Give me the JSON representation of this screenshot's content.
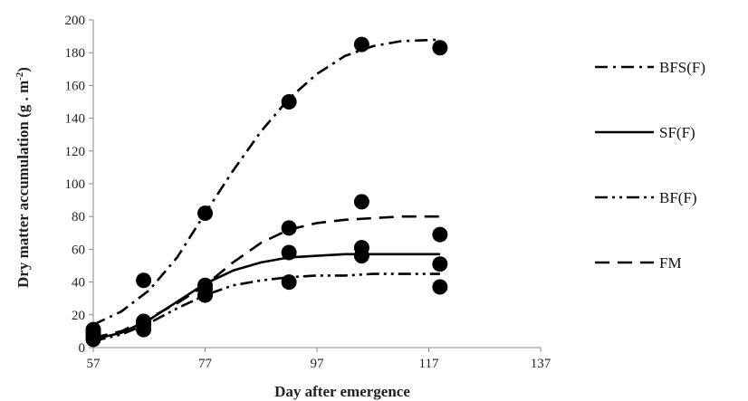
{
  "chart_data": {
    "type": "scatter",
    "title": "",
    "xlabel": "Day after emergence",
    "ylabel": "Dry matter accumulation (g . m",
    "ylabel_superscript": "-2",
    "ylabel_suffix": ")",
    "xlim": [
      57,
      137
    ],
    "ylim": [
      0,
      200
    ],
    "x_ticks": [
      "57",
      "77",
      "97",
      "117",
      "137"
    ],
    "y_ticks": [
      "0",
      "20",
      "40",
      "60",
      "80",
      "100",
      "120",
      "140",
      "160",
      "180",
      "200"
    ],
    "grid": false,
    "legend_position": "right",
    "series": [
      {
        "name": "BFS(F)",
        "dash": "dashdot",
        "x": [
          57,
          66,
          77,
          92,
          105,
          119
        ],
        "y": [
          11,
          41,
          82,
          150,
          185,
          183
        ],
        "fit_x": [
          57,
          62,
          67,
          72,
          77,
          82,
          87,
          92,
          97,
          102,
          107,
          112,
          119
        ],
        "fit_y": [
          14,
          22,
          35,
          55,
          82,
          108,
          132,
          152,
          167,
          178,
          184,
          187,
          188
        ]
      },
      {
        "name": "SF(F)",
        "dash": "solid",
        "x": [
          57,
          66,
          77,
          92,
          105,
          119
        ],
        "y": [
          7,
          14,
          38,
          58,
          56,
          51
        ],
        "fit_x": [
          57,
          62,
          67,
          72,
          77,
          82,
          87,
          92,
          97,
          102,
          107,
          112,
          119
        ],
        "fit_y": [
          5,
          9,
          17,
          28,
          39,
          47,
          52,
          55,
          56,
          57,
          57,
          57,
          57
        ]
      },
      {
        "name": "BF(F)",
        "dash": "dashdotdot",
        "x": [
          57,
          66,
          77,
          92,
          105,
          119
        ],
        "y": [
          5,
          11,
          32,
          40,
          61,
          37
        ],
        "fit_x": [
          57,
          62,
          67,
          72,
          77,
          82,
          87,
          92,
          97,
          102,
          107,
          112,
          119
        ],
        "fit_y": [
          4,
          8,
          15,
          24,
          32,
          38,
          41,
          43,
          44,
          44,
          45,
          45,
          45
        ]
      },
      {
        "name": "FM",
        "dash": "dash",
        "x": [
          57,
          66,
          77,
          92,
          105,
          119
        ],
        "y": [
          9,
          16,
          36,
          73,
          89,
          69
        ],
        "fit_x": [
          57,
          62,
          67,
          72,
          77,
          82,
          87,
          92,
          97,
          102,
          107,
          112,
          119
        ],
        "fit_y": [
          6,
          10,
          18,
          27,
          38,
          52,
          64,
          72,
          76,
          78,
          79,
          80,
          80
        ]
      }
    ]
  }
}
